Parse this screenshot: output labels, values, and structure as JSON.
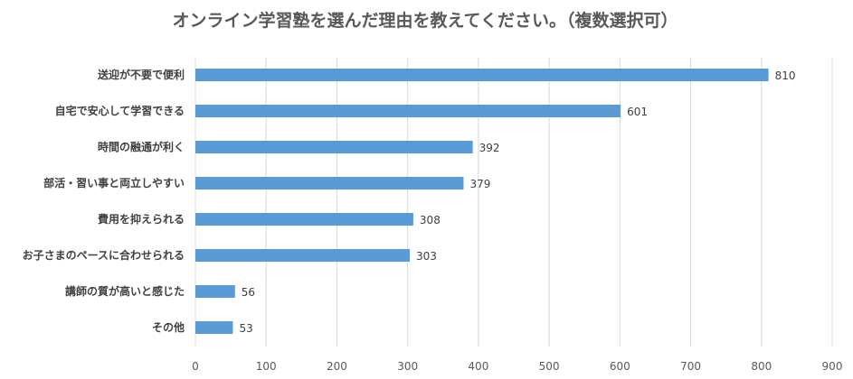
{
  "chart_data": {
    "type": "bar",
    "orientation": "horizontal",
    "title": "オンライン学習塾を選んだ理由を教えてください。（複数選択可）",
    "categories": [
      "送迎が不要で便利",
      "自宅で安心して学習できる",
      "時間の融通が利く",
      "部活・習い事と両立しやすい",
      "費用を抑えられる",
      "お子さまのペースに合わせられる",
      "講師の質が高いと感じた",
      "その他"
    ],
    "values": [
      810,
      601,
      392,
      379,
      308,
      303,
      56,
      53
    ],
    "xlim": [
      0,
      900
    ],
    "xticks": [
      0,
      100,
      200,
      300,
      400,
      500,
      600,
      700,
      800,
      900
    ],
    "grid": true,
    "data_labels": true,
    "bar_color": "#5b9bd5",
    "grid_color": "#d9d9d9"
  }
}
